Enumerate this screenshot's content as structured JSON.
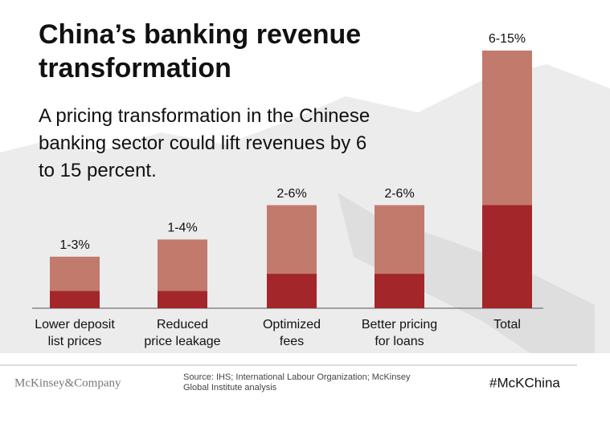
{
  "chart_data": {
    "type": "range-bar",
    "title": "China’s banking revenue transformation",
    "subtitle": "A pricing transformation in the Chinese banking sector could lift revenues by 6 to 15 percent.",
    "categories": [
      [
        "Lower deposit",
        "list prices"
      ],
      [
        "Reduced",
        "price leakage"
      ],
      [
        "Optimized",
        "fees"
      ],
      [
        "Better pricing",
        "for loans"
      ],
      [
        "Total"
      ]
    ],
    "series": [
      {
        "color": "#c17a6c",
        "values": [
          3,
          4,
          6,
          6,
          15
        ]
      },
      {
        "color": "#a3262a",
        "values": [
          1,
          1,
          2,
          2,
          6
        ]
      }
    ],
    "value_labels": [
      "1-3%",
      "1-4%",
      "2-6%",
      "2-6%",
      "6-15%"
    ],
    "ylim": [
      0,
      15
    ],
    "source": "Source: IHS; International Labour Organization; McKinsey Global Institute analysis",
    "logo": "McKinsey&Company",
    "hashtag": "#McKChina"
  }
}
